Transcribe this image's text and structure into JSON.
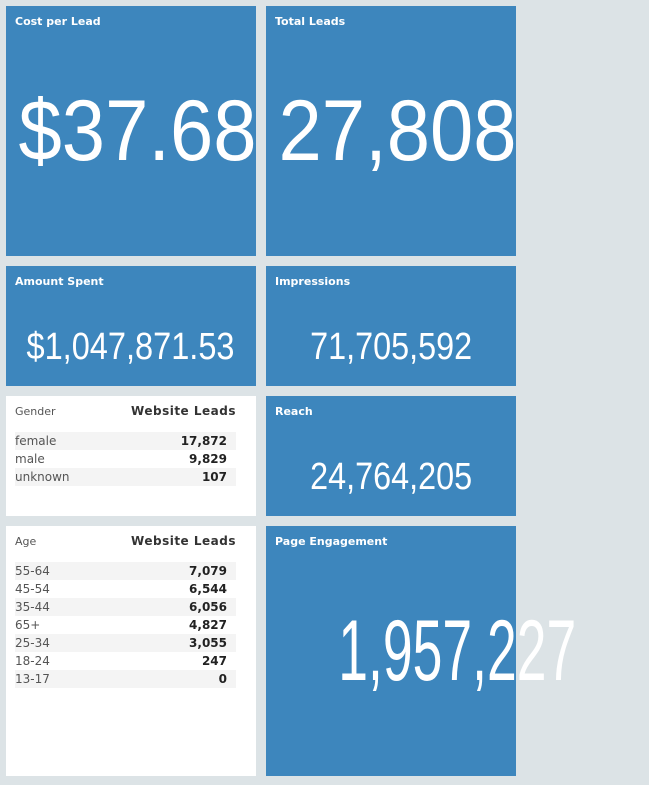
{
  "tiles": [
    {
      "label": "Cost per Lead",
      "value": "$37.68"
    },
    {
      "label": "Total Leads",
      "value": "27,808"
    },
    {
      "label": "Amount Spent",
      "value": "$1,047,871.53"
    },
    {
      "label": "Impressions",
      "value": "71,705,592"
    },
    {
      "label": "Reach",
      "value": "24,764,205"
    },
    {
      "label": "Page Engagement",
      "value": "1,957,227"
    }
  ],
  "tables": [
    {
      "header": [
        "Gender",
        "Website Leads"
      ],
      "rows": [
        [
          "female",
          "17,872"
        ],
        [
          "male",
          "9,829"
        ],
        [
          "unknown",
          "107"
        ]
      ]
    },
    {
      "header": [
        "Age",
        "Website Leads"
      ],
      "rows": [
        [
          "55-64",
          "7,079"
        ],
        [
          "45-54",
          "6,544"
        ],
        [
          "35-44",
          "6,056"
        ],
        [
          "65+",
          "4,827"
        ],
        [
          "25-34",
          "3,055"
        ],
        [
          "18-24",
          "247"
        ],
        [
          "13-17",
          "0"
        ]
      ]
    }
  ]
}
